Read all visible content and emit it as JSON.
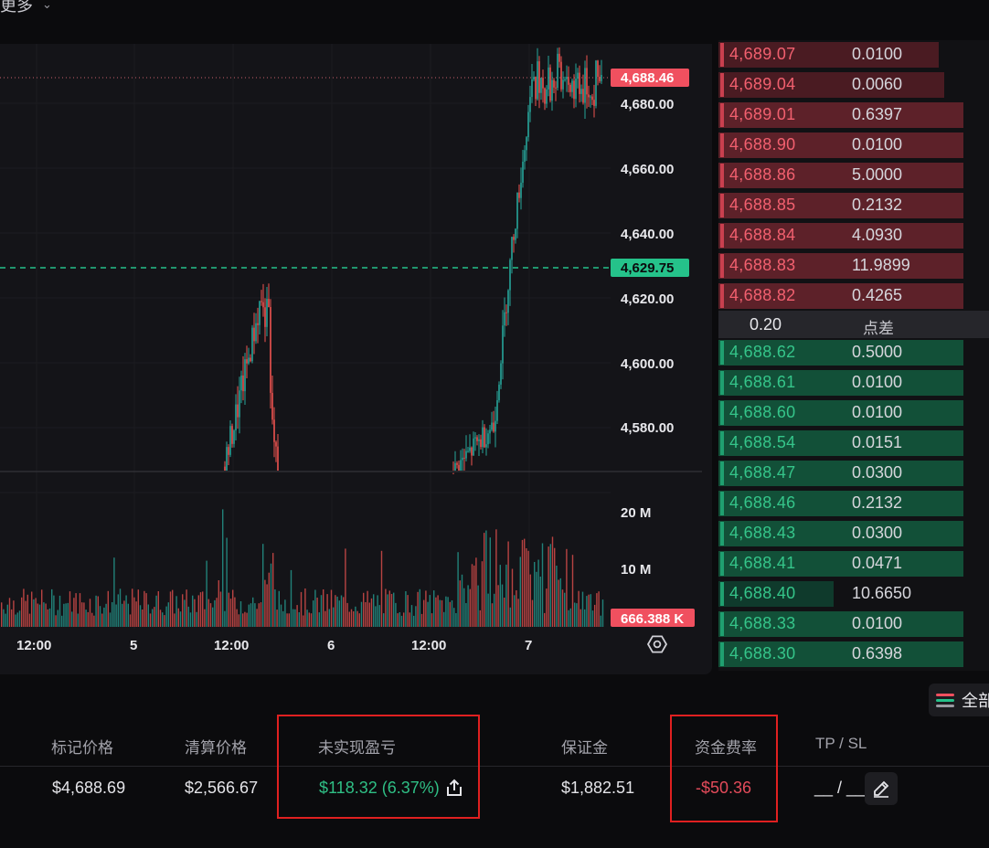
{
  "topbar": {
    "more_label": "更多",
    "chevron_icon": "chevron-down-icon"
  },
  "chart": {
    "price_ticks": [
      "4,680.00",
      "4,660.00",
      "4,640.00",
      "4,620.00",
      "4,600.00",
      "4,580.00"
    ],
    "last_price_badge": "4,688.46",
    "mark_price_badge": "4,629.75",
    "volume_ticks": [
      "20 M",
      "10 M"
    ],
    "volume_badge": "666.388 K",
    "time_labels": [
      "12:00",
      "5",
      "12:00",
      "6",
      "12:00",
      "7"
    ],
    "settings_icon": "gear-icon",
    "colors": {
      "up": "#26a69a",
      "down": "#ef5350",
      "last_badge": "#f0505f",
      "mark_badge": "#25c28a"
    }
  },
  "orderbook": {
    "asks": [
      {
        "price": "4,689.07",
        "size": "0.0100",
        "depth": 0.9
      },
      {
        "price": "4,689.04",
        "size": "0.0060",
        "depth": 0.92
      },
      {
        "price": "4,689.01",
        "size": "0.6397",
        "depth": 1.0
      },
      {
        "price": "4,688.90",
        "size": "0.0100",
        "depth": 1.0
      },
      {
        "price": "4,688.86",
        "size": "5.0000",
        "depth": 1.0
      },
      {
        "price": "4,688.85",
        "size": "0.2132",
        "depth": 1.0
      },
      {
        "price": "4,688.84",
        "size": "4.0930",
        "depth": 1.0
      },
      {
        "price": "4,688.83",
        "size": "11.9899",
        "depth": 1.0
      },
      {
        "price": "4,688.82",
        "size": "0.4265",
        "depth": 1.0
      }
    ],
    "spread": {
      "value": "0.20",
      "label": "点差"
    },
    "bids": [
      {
        "price": "4,688.62",
        "size": "0.5000",
        "depth": 1.0
      },
      {
        "price": "4,688.61",
        "size": "0.0100",
        "depth": 1.0
      },
      {
        "price": "4,688.60",
        "size": "0.0100",
        "depth": 1.0
      },
      {
        "price": "4,688.54",
        "size": "0.0151",
        "depth": 1.0
      },
      {
        "price": "4,688.47",
        "size": "0.0300",
        "depth": 1.0
      },
      {
        "price": "4,688.46",
        "size": "0.2132",
        "depth": 1.0
      },
      {
        "price": "4,688.43",
        "size": "0.0300",
        "depth": 1.0
      },
      {
        "price": "4,688.41",
        "size": "0.0471",
        "depth": 1.0
      },
      {
        "price": "4,688.40",
        "size": "10.6650",
        "depth": 0.47
      },
      {
        "price": "4,688.33",
        "size": "0.0100",
        "depth": 1.0
      },
      {
        "price": "4,688.30",
        "size": "0.6398",
        "depth": 1.0
      }
    ]
  },
  "positions": {
    "filter_label": "全部",
    "filter_icon": "filter-lines-icon",
    "headers": {
      "mark_price": "标记价格",
      "liq_price": "清算价格",
      "unrealized_pnl": "未实现盈亏",
      "margin": "保证金",
      "funding_rate": "资金费率",
      "tp_sl": "TP / SL"
    },
    "row": {
      "mark_price": "$4,688.69",
      "liq_price": "$2,566.67",
      "unrealized_pnl": "$118.32 (6.37%)",
      "margin": "$1,882.51",
      "funding": "-$50.36",
      "tp_sl": "__ / __"
    },
    "share_icon": "share-icon",
    "edit_icon": "edit-pencil-icon"
  }
}
